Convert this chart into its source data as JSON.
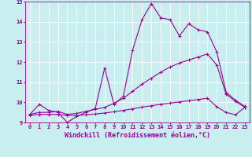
{
  "bg_color": "#c8eef0",
  "grid_color": "#ffffff",
  "line_color": "#990099",
  "xlim": [
    -0.5,
    23.5
  ],
  "ylim": [
    9,
    15
  ],
  "xtick_labels": [
    "0",
    "1",
    "2",
    "3",
    "4",
    "5",
    "6",
    "7",
    "8",
    "9",
    "10",
    "11",
    "12",
    "13",
    "14",
    "15",
    "16",
    "17",
    "18",
    "19",
    "20",
    "21",
    "22",
    "23"
  ],
  "ytick_labels": [
    "9",
    "10",
    "11",
    "12",
    "13",
    "14",
    "15"
  ],
  "xlabel": "Windchill (Refroidissement éolien,°C)",
  "series1_x": [
    0,
    1,
    2,
    3,
    4,
    5,
    6,
    7,
    8,
    9,
    10,
    11,
    12,
    13,
    14,
    15,
    16,
    17,
    18,
    19,
    20,
    21,
    22,
    23
  ],
  "series1_y": [
    9.4,
    9.9,
    9.6,
    9.5,
    9.0,
    9.3,
    9.5,
    9.7,
    11.7,
    9.9,
    10.3,
    12.6,
    14.1,
    14.9,
    14.2,
    14.1,
    13.3,
    13.9,
    13.6,
    13.5,
    12.5,
    10.5,
    10.1,
    9.8
  ],
  "series2_x": [
    0,
    1,
    2,
    3,
    4,
    5,
    6,
    7,
    8,
    9,
    10,
    11,
    12,
    13,
    14,
    15,
    16,
    17,
    18,
    19,
    20,
    21,
    22,
    23
  ],
  "series2_y": [
    9.4,
    9.5,
    9.5,
    9.55,
    9.4,
    9.45,
    9.55,
    9.65,
    9.75,
    9.95,
    10.2,
    10.55,
    10.9,
    11.2,
    11.5,
    11.75,
    11.95,
    12.1,
    12.25,
    12.4,
    11.85,
    10.4,
    10.05,
    9.75
  ],
  "series3_x": [
    0,
    1,
    2,
    3,
    4,
    5,
    6,
    7,
    8,
    9,
    10,
    11,
    12,
    13,
    14,
    15,
    16,
    17,
    18,
    19,
    20,
    21,
    22,
    23
  ],
  "series3_y": [
    9.35,
    9.4,
    9.4,
    9.4,
    9.35,
    9.35,
    9.38,
    9.42,
    9.47,
    9.53,
    9.6,
    9.68,
    9.76,
    9.83,
    9.9,
    9.96,
    10.02,
    10.08,
    10.14,
    10.2,
    9.78,
    9.5,
    9.38,
    9.75
  ],
  "marker": "+",
  "markersize": 3,
  "linewidth": 0.8,
  "tick_fontsize": 5.0,
  "xlabel_fontsize": 6.0
}
